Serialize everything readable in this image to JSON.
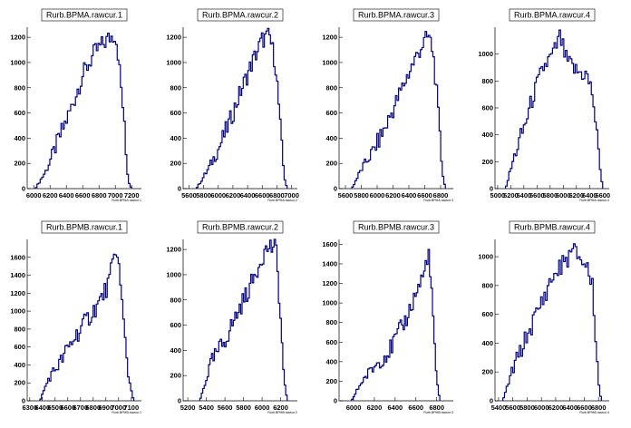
{
  "chart_data": [
    {
      "type": "bar",
      "style": "step-histogram",
      "title": "Rurb.BPMA.rawcur.1",
      "xlabel": "Rurb.BPMA.rawcur.1",
      "xlim": [
        5920,
        7320
      ],
      "ylim": [
        0,
        1280
      ],
      "xticks": [
        6000,
        6200,
        6400,
        6600,
        6800,
        7000,
        7200
      ],
      "yticks": [
        0,
        200,
        400,
        600,
        800,
        1000,
        1200
      ],
      "line_color": "#000080",
      "x": [
        6020,
        6150,
        6300,
        6450,
        6600,
        6750,
        6900,
        7000,
        7030,
        7060,
        7100,
        7130,
        7160,
        7200
      ],
      "y": [
        0,
        140,
        380,
        620,
        900,
        1080,
        1180,
        1230,
        1100,
        880,
        600,
        280,
        60,
        0
      ]
    },
    {
      "type": "bar",
      "style": "step-histogram",
      "title": "Rurb.BPMA.rawcur.2",
      "xlabel": "Rurb.BPMA.rawcur.2",
      "xlim": [
        5520,
        7080
      ],
      "ylim": [
        0,
        1280
      ],
      "xticks": [
        5600,
        5800,
        6000,
        6200,
        6400,
        6600,
        6800,
        7000
      ],
      "yticks": [
        0,
        200,
        400,
        600,
        800,
        1000,
        1200
      ],
      "line_color": "#000080",
      "x": [
        5700,
        5850,
        6000,
        6150,
        6300,
        6450,
        6600,
        6700,
        6780,
        6820,
        6860,
        6900,
        6940
      ],
      "y": [
        0,
        140,
        310,
        520,
        760,
        980,
        1180,
        1210,
        1000,
        720,
        380,
        100,
        0
      ]
    },
    {
      "type": "bar",
      "style": "step-histogram",
      "title": "Rurb.BPMA.rawcur.3",
      "xlabel": "Rurb.BPMA.rawcur.3",
      "xlim": [
        5520,
        6960
      ],
      "ylim": [
        0,
        1280
      ],
      "xticks": [
        5600,
        5800,
        6000,
        6200,
        6400,
        6600,
        6800
      ],
      "yticks": [
        0,
        200,
        400,
        600,
        800,
        1000,
        1200
      ],
      "line_color": "#000080",
      "x": [
        5680,
        5800,
        5950,
        6100,
        6250,
        6400,
        6550,
        6650,
        6700,
        6740,
        6780,
        6820,
        6860
      ],
      "y": [
        0,
        150,
        300,
        480,
        700,
        920,
        1120,
        1210,
        1100,
        850,
        500,
        150,
        0
      ]
    },
    {
      "type": "bar",
      "style": "step-histogram",
      "title": "Rurb.BPMA.rawcur.4",
      "xlabel": "Rurb.BPMA.rawcur.4",
      "xlim": [
        4960,
        6700
      ],
      "ylim": [
        0,
        1200
      ],
      "xticks": [
        5000,
        5200,
        5400,
        5600,
        5800,
        6000,
        6200,
        6400,
        6600
      ],
      "yticks": [
        0,
        200,
        400,
        600,
        800,
        1000
      ],
      "line_color": "#000080",
      "x": [
        5120,
        5250,
        5400,
        5550,
        5700,
        5850,
        5950,
        6050,
        6200,
        6350,
        6450,
        6520,
        6600
      ],
      "y": [
        0,
        230,
        450,
        700,
        900,
        1000,
        1130,
        950,
        870,
        850,
        700,
        350,
        0
      ]
    },
    {
      "type": "bar",
      "style": "step-histogram",
      "title": "Rurb.BPMB.rawcur.1",
      "xlabel": "Rurb.BPMB.rawcur.1",
      "xlim": [
        6280,
        7180
      ],
      "ylim": [
        0,
        1800
      ],
      "xticks": [
        6300,
        6400,
        6500,
        6600,
        6700,
        6800,
        6900,
        7000,
        7100
      ],
      "yticks": [
        0,
        200,
        400,
        600,
        800,
        1000,
        1200,
        1400,
        1600
      ],
      "line_color": "#000080",
      "x": [
        6380,
        6450,
        6550,
        6650,
        6750,
        6850,
        6920,
        6960,
        6990,
        7020,
        7050,
        7080,
        7120
      ],
      "y": [
        0,
        250,
        450,
        700,
        900,
        1100,
        1300,
        1550,
        1700,
        1200,
        700,
        250,
        0
      ]
    },
    {
      "type": "bar",
      "style": "step-histogram",
      "title": "Rurb.BPMB.rawcur.2",
      "xlabel": "Rurb.BPMB.rawcur.2",
      "xlim": [
        5150,
        6380
      ],
      "ylim": [
        0,
        1280
      ],
      "xticks": [
        5200,
        5400,
        5600,
        5800,
        6000,
        6200
      ],
      "yticks": [
        0,
        200,
        400,
        600,
        800,
        1000,
        1200
      ],
      "line_color": "#000080",
      "x": [
        5330,
        5450,
        5600,
        5750,
        5900,
        6000,
        6080,
        6150,
        6180,
        6210,
        6240,
        6270
      ],
      "y": [
        0,
        300,
        480,
        720,
        950,
        1150,
        1230,
        1200,
        900,
        500,
        150,
        0
      ]
    },
    {
      "type": "bar",
      "style": "step-histogram",
      "title": "Rurb.BPMB.rawcur.3",
      "xlabel": "Rurb.BPMB.rawcur.3",
      "xlim": [
        5860,
        6960
      ],
      "ylim": [
        0,
        1650
      ],
      "xticks": [
        6000,
        6200,
        6400,
        6600,
        6800
      ],
      "yticks": [
        0,
        200,
        400,
        600,
        800,
        1000,
        1200,
        1400,
        1600
      ],
      "line_color": "#000080",
      "x": [
        5980,
        6080,
        6200,
        6350,
        6500,
        6620,
        6680,
        6720,
        6750,
        6780,
        6800,
        6830
      ],
      "y": [
        0,
        200,
        350,
        520,
        820,
        1150,
        1300,
        1550,
        1100,
        600,
        200,
        0
      ]
    },
    {
      "type": "bar",
      "style": "step-histogram",
      "title": "Rurb.BPMB.rawcur.4",
      "xlabel": "Rurb.BPMB.rawcur.4",
      "xlim": [
        5350,
        6950
      ],
      "ylim": [
        0,
        1120
      ],
      "xticks": [
        5400,
        5600,
        5800,
        6000,
        6200,
        6400,
        6600,
        6800
      ],
      "yticks": [
        0,
        200,
        400,
        600,
        800,
        1000
      ],
      "line_color": "#000080",
      "x": [
        5460,
        5600,
        5800,
        6000,
        6150,
        6300,
        6450,
        6550,
        6650,
        6720,
        6760,
        6800,
        6840
      ],
      "y": [
        0,
        220,
        450,
        680,
        850,
        950,
        1040,
        990,
        920,
        780,
        450,
        120,
        0
      ]
    }
  ]
}
